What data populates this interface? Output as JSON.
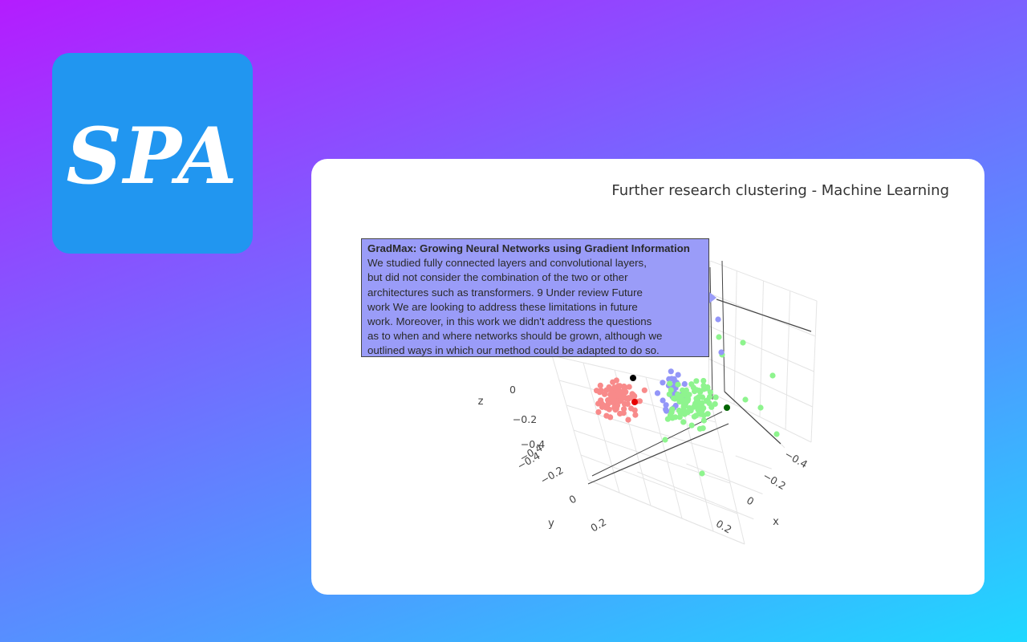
{
  "logo": {
    "text": "SPA",
    "bg_color": "#2196f0"
  },
  "chart_data": {
    "type": "scatter",
    "title": "Further research clustering - Machine Learning",
    "xlabel": "x",
    "ylabel": "y",
    "zlabel": "z",
    "x_ticks": [
      "0.2",
      "0",
      "−0.2",
      "−0.4"
    ],
    "y_ticks": [
      "0.2",
      "0",
      "−0.2",
      "−0.4"
    ],
    "z_ticks": [
      "0",
      "−0.2",
      "−0.4"
    ],
    "series_colors": [
      "#f88a8a",
      "#9396f8",
      "#8ef48e"
    ],
    "highlight_colors": [
      "#000000",
      "#e60000",
      "#006400"
    ],
    "tooltip": {
      "title": "GradMax: Growing Neural Networks using Gradient Information",
      "lines": [
        "We studied fully connected layers and convolutional layers,",
        "but did not consider the combination of the two or other",
        "architectures such as transformers. 9 Under review Future",
        "work We are looking to address these limitations in future",
        "work. Moreover, in this work we didn't address the questions",
        "as to when and where networks should be grown, although we",
        "outlined ways in which our method could be adapted to do so."
      ]
    }
  }
}
